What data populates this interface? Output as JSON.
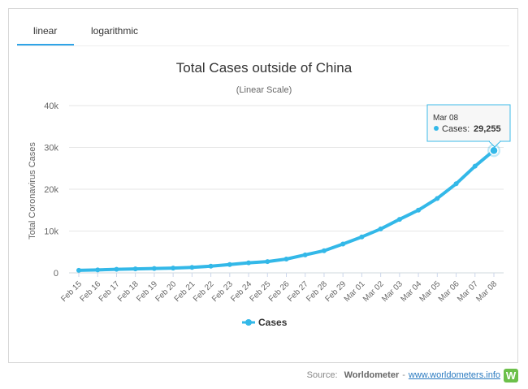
{
  "tabs": [
    {
      "label": "linear",
      "active": true
    },
    {
      "label": "logarithmic",
      "active": false
    }
  ],
  "tooltip": {
    "date": "Mar 08",
    "series_label": "Cases:",
    "value": "29,255"
  },
  "footer": {
    "source_label": "Source:",
    "brand": "Worldometer",
    "separator": "-",
    "link_text": "www.worldometers.info",
    "logo_letter": "W"
  },
  "colors": {
    "series": "#33b8e8",
    "accent": "#2fa4e7",
    "logo": "#6cc04a"
  },
  "chart_data": {
    "type": "line",
    "title": "Total Cases outside of China",
    "subtitle": "(Linear Scale)",
    "xlabel": "",
    "ylabel": "Total Coronavirus Cases",
    "ylim": [
      0,
      40000
    ],
    "yticks": [
      0,
      10000,
      20000,
      30000,
      40000
    ],
    "ytick_labels": [
      "0",
      "10k",
      "20k",
      "30k",
      "40k"
    ],
    "grid": true,
    "legend_position": "bottom-center",
    "categories": [
      "Feb 15",
      "Feb 16",
      "Feb 17",
      "Feb 18",
      "Feb 19",
      "Feb 20",
      "Feb 21",
      "Feb 22",
      "Feb 23",
      "Feb 24",
      "Feb 25",
      "Feb 26",
      "Feb 27",
      "Feb 28",
      "Feb 29",
      "Mar 01",
      "Mar 02",
      "Mar 03",
      "Mar 04",
      "Mar 05",
      "Mar 06",
      "Mar 07",
      "Mar 08"
    ],
    "series": [
      {
        "name": "Cases",
        "values": [
          600,
          700,
          850,
          950,
          1050,
          1150,
          1300,
          1600,
          2000,
          2400,
          2700,
          3300,
          4300,
          5300,
          6900,
          8600,
          10500,
          12800,
          15000,
          17800,
          21300,
          25500,
          29255
        ]
      }
    ]
  }
}
